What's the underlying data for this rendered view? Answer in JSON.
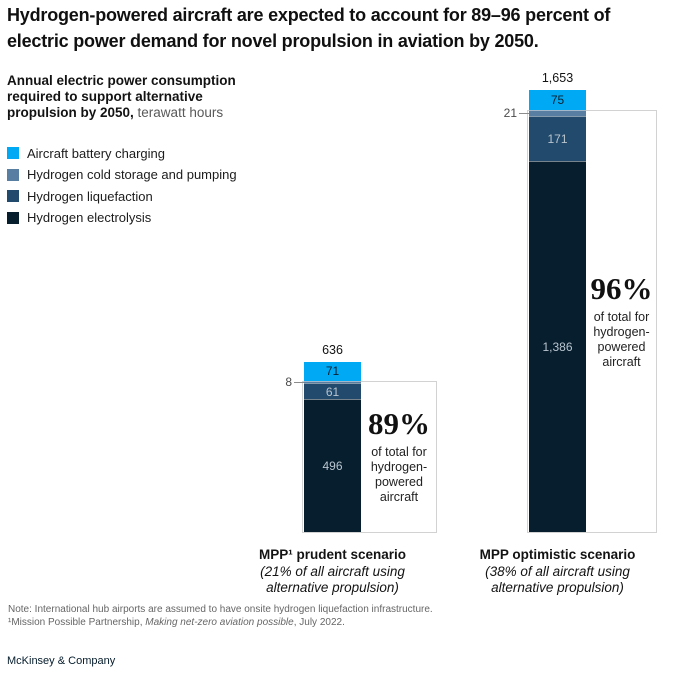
{
  "title_lines": [
    "Hydrogen-powered aircraft are expected to account for 89–96 percent of",
    "electric power demand for novel propulsion in aviation by 2050."
  ],
  "subtitle": {
    "lines": [
      "Annual electric power consumption",
      "required to support alternative",
      "propulsion by 2050,"
    ],
    "unit": "terawatt hours"
  },
  "legend": [
    {
      "label": "Aircraft battery charging",
      "color": "#00A9F4"
    },
    {
      "label": "Hydrogen cold storage and pumping",
      "color": "#587EA1"
    },
    {
      "label": "Hydrogen liquefaction",
      "color": "#224A6C"
    },
    {
      "label": "Hydrogen electrolysis",
      "color": "#071E2E"
    }
  ],
  "chart_data": {
    "type": "bar",
    "stacked": true,
    "title": "Annual electric power consumption required to support alternative propulsion by 2050",
    "unit": "terawatt hours",
    "categories": [
      "MPP¹ prudent scenario",
      "MPP optimistic scenario"
    ],
    "category_notes": [
      "(21% of all aircraft using alternative propulsion)",
      "(38% of all aircraft using alternative propulsion)"
    ],
    "series": [
      {
        "name": "Aircraft battery charging",
        "color": "#00A9F4",
        "values": [
          71,
          75
        ]
      },
      {
        "name": "Hydrogen cold storage and pumping",
        "color": "#587EA1",
        "values": [
          8,
          21
        ]
      },
      {
        "name": "Hydrogen liquefaction",
        "color": "#224A6C",
        "values": [
          61,
          171
        ]
      },
      {
        "name": "Hydrogen electrolysis",
        "color": "#071E2E",
        "values": [
          496,
          1386
        ]
      }
    ],
    "totals": [
      "636",
      "1,653"
    ],
    "callouts": [
      {
        "pct": "89%",
        "desc": "of total for hydrogen-powered aircraft"
      },
      {
        "pct": "96%",
        "desc": "of total for hydrogen-powered aircraft"
      }
    ],
    "ylim": [
      0,
      1653
    ],
    "grid": false,
    "legend_position": "top-left"
  },
  "footnotes": {
    "note": "Note: International hub airports are assumed to have onsite hydrogen liquefaction infrastructure.",
    "src_prefix": "¹Mission Possible Partnership, ",
    "src_italic": "Making net-zero aviation possible",
    "src_suffix": ", July 2022."
  },
  "brand": "McKinsey & Company"
}
